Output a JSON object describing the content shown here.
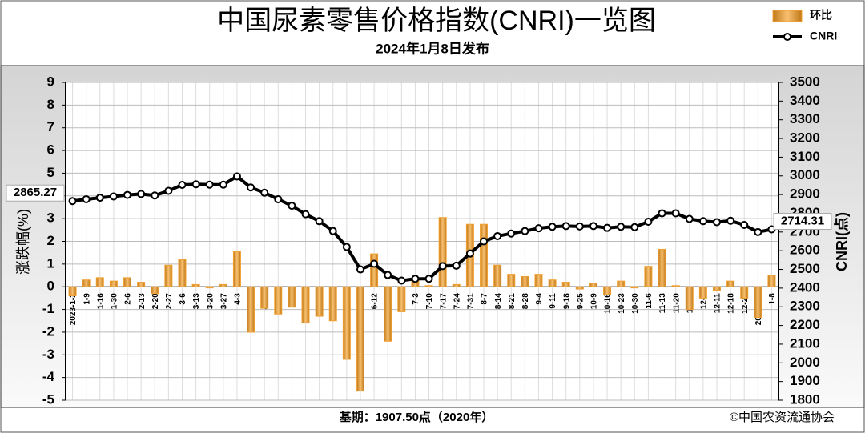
{
  "chart_data": {
    "type": "bar",
    "title": "中国尿素零售价格指数(CNRI)一览图",
    "subtitle": "2024年1月8日发布",
    "y_label": "涨跌幅(%)",
    "y2_label": "CNRI(点)",
    "footer": "基期：1907.50点（2020年）",
    "credit": "©中国农资流通协会",
    "categories": [
      "2023-1-2",
      "1-9",
      "1-16",
      "1-30",
      "2-6",
      "2-13",
      "2-20",
      "2-27",
      "3-6",
      "3-13",
      "3-20",
      "3-27",
      "4-3",
      "4-10",
      "4-17",
      "4-24",
      "5-1",
      "5-8",
      "5-16",
      "5-22",
      "5-29",
      "6-5",
      "6-12",
      "6-19",
      "6-26",
      "7-3",
      "7-10",
      "7-17",
      "7-24",
      "7-31",
      "8-7",
      "8-14",
      "8-21",
      "8-28",
      "9-4",
      "9-11",
      "9-18",
      "9-25",
      "10-9",
      "10-16",
      "10-23",
      "10-30",
      "11-6",
      "11-13",
      "11-20",
      "11-27",
      "12-4",
      "12-11",
      "12-18",
      "12-25",
      "2024-1-1",
      "1-8"
    ],
    "series": [
      {
        "name": "环比",
        "type": "bar",
        "color": "#f0a030",
        "values": [
          -0.4,
          0.3,
          0.4,
          0.25,
          0.4,
          0.2,
          -0.3,
          0.95,
          1.2,
          0.1,
          -0.05,
          0.1,
          1.55,
          -2.0,
          -0.95,
          -1.2,
          -0.9,
          -1.6,
          -1.3,
          -1.5,
          -3.2,
          -4.6,
          1.45,
          -2.4,
          -1.1,
          0.35,
          0.05,
          3.05,
          0.1,
          2.75,
          2.75,
          0.95,
          0.55,
          0.45,
          0.55,
          0.3,
          0.2,
          -0.1,
          0.15,
          -0.35,
          0.25,
          -0.05,
          0.9,
          1.65,
          0.05,
          -1.0,
          -0.5,
          -0.15,
          0.25,
          -0.5,
          -1.35,
          0.5
        ]
      },
      {
        "name": "CNRI",
        "type": "line",
        "axis": "y2",
        "color": "#000000",
        "values": [
          2865.27,
          2875,
          2883,
          2890,
          2898,
          2903,
          2895,
          2920,
          2952,
          2955,
          2953,
          2953,
          2997,
          2938,
          2910,
          2875,
          2840,
          2795,
          2758,
          2705,
          2620,
          2500,
          2530,
          2470,
          2440,
          2450,
          2450,
          2518,
          2520,
          2585,
          2650,
          2678,
          2692,
          2705,
          2720,
          2728,
          2732,
          2730,
          2732,
          2722,
          2728,
          2726,
          2755,
          2800,
          2800,
          2770,
          2758,
          2753,
          2760,
          2738,
          2700,
          2714.31
        ]
      }
    ],
    "ylim": [
      -5,
      9
    ],
    "yticks": [
      -5,
      -4,
      -3,
      -2,
      -1,
      0,
      1,
      2,
      3,
      4,
      5,
      6,
      7,
      8,
      9
    ],
    "y2lim": [
      1800,
      3500
    ],
    "y2ticks": [
      1800,
      1900,
      2000,
      2100,
      2200,
      2300,
      2400,
      2500,
      2600,
      2700,
      2800,
      2900,
      3000,
      3100,
      3200,
      3300,
      3400,
      3500
    ],
    "grid": true
  }
}
